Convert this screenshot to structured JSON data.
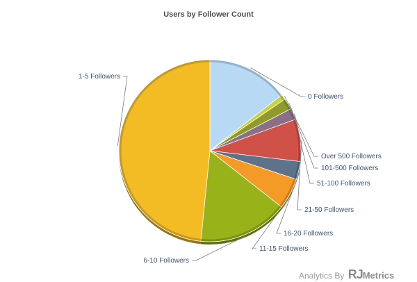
{
  "chart_data": {
    "type": "pie",
    "title": "Users by Follower Count",
    "slices": [
      {
        "label": "0 Followers",
        "value": 14.5,
        "color": "#b8d9f4"
      },
      {
        "label": "Over 500 Followers",
        "value": 0.9,
        "color": "#c9d23a"
      },
      {
        "label": "101-500 Followers",
        "value": 2.0,
        "color": "#8f9a2a"
      },
      {
        "label": "51-100 Followers",
        "value": 2.0,
        "color": "#8a6f86"
      },
      {
        "label": "21-50 Followers",
        "value": 7.5,
        "color": "#d05148"
      },
      {
        "label": "16-20 Followers",
        "value": 3.2,
        "color": "#5e7289"
      },
      {
        "label": "11-15 Followers",
        "value": 5.5,
        "color": "#f39a27"
      },
      {
        "label": "6-10 Followers",
        "value": 16.0,
        "color": "#98b31a"
      },
      {
        "label": "1-5 Followers",
        "value": 48.4,
        "color": "#f3bc24"
      }
    ],
    "start_angle_deg": 90,
    "direction": "clockwise",
    "legend": "none"
  },
  "footer": {
    "credit_prefix": "Analytics By",
    "brand_rj": "RJ",
    "brand_rest": "Metrics"
  }
}
